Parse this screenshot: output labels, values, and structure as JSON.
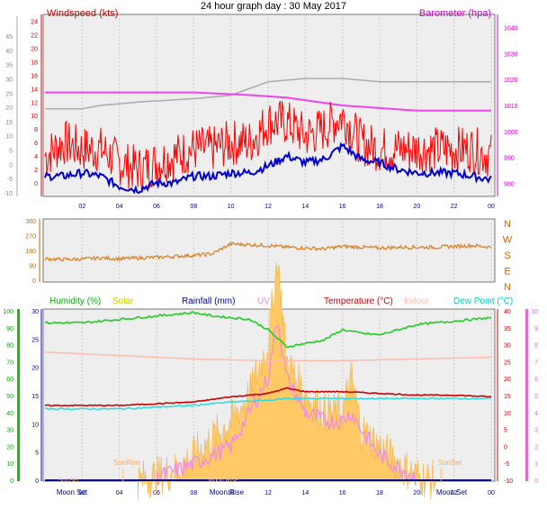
{
  "chart_data": [
    {
      "type": "line",
      "title": "24 hour graph day : 30 May 2017",
      "ylabel": "Windspeed (kts)",
      "y2label": "Barometer (hpa)",
      "x": [
        "02",
        "04",
        "06",
        "08",
        "10",
        "12",
        "14",
        "16",
        "18",
        "20",
        "22",
        "00"
      ],
      "xlim": [
        0,
        24
      ],
      "ylim_left_outer": [
        -10,
        45
      ],
      "ylim_left_inner": [
        -2,
        25
      ],
      "ylim_right": [
        975,
        1045
      ],
      "left_outer_ticks": [
        "-10",
        "-5",
        "0",
        "5",
        "10",
        "15",
        "20",
        "25",
        "30",
        "35",
        "40",
        "45"
      ],
      "left_inner_ticks": [
        "0",
        "2",
        "4",
        "6",
        "8",
        "10",
        "12",
        "14",
        "16",
        "18",
        "20",
        "22",
        "24"
      ],
      "right_ticks": [
        "980",
        "990",
        "1000",
        "1010",
        "1020",
        "1030",
        "1040"
      ],
      "colors": {
        "gust": "#ff0000",
        "speed": "#0000cc",
        "barometer": "#ee44ee",
        "grey": "#aaaaaa",
        "ylabel": "#cc0000",
        "y2label": "#cc00cc"
      },
      "series": [
        {
          "name": "gust",
          "x": [
            0,
            1,
            2,
            3,
            4,
            5,
            6,
            7,
            8,
            9,
            10,
            11,
            12,
            13,
            14,
            15,
            16,
            17,
            18,
            19,
            20,
            21,
            22,
            23,
            24
          ],
          "values": [
            4,
            6,
            5,
            5,
            3,
            2,
            3,
            4,
            5,
            5,
            6,
            6,
            9,
            9,
            7,
            8,
            10,
            6,
            5,
            5,
            5,
            5,
            5,
            5,
            4
          ]
        },
        {
          "name": "speed",
          "x": [
            0,
            1,
            2,
            3,
            4,
            5,
            6,
            7,
            8,
            9,
            10,
            11,
            12,
            13,
            14,
            15,
            16,
            17,
            18,
            19,
            20,
            21,
            22,
            23,
            24
          ],
          "values": [
            1,
            1,
            1.5,
            1,
            -0.5,
            -1,
            0,
            0,
            1,
            1,
            1.5,
            1.5,
            2.5,
            4,
            3,
            3.5,
            5.5,
            3.5,
            3,
            2,
            1.5,
            1.5,
            1.5,
            1,
            0.5
          ]
        },
        {
          "name": "barometer",
          "x": [
            0,
            4,
            8,
            11,
            13,
            14,
            15,
            16,
            18,
            20,
            22,
            24
          ],
          "values": [
            1015,
            1015,
            1015,
            1014,
            1013,
            1012,
            1011,
            1010,
            1009,
            1008,
            1008,
            1008
          ]
        },
        {
          "name": "grey",
          "x": [
            0,
            2,
            3,
            5,
            8,
            10,
            11,
            12,
            14,
            16,
            18,
            20,
            24
          ],
          "values": [
            11,
            11,
            11.5,
            12,
            12.5,
            13,
            14,
            15,
            15.5,
            15.5,
            15,
            15,
            15
          ]
        }
      ]
    },
    {
      "type": "line",
      "y_ticks": [
        "360",
        "270",
        "180",
        "90",
        "0"
      ],
      "compass": [
        "N",
        "W",
        "S",
        "E",
        "N"
      ],
      "ylim": [
        0,
        360
      ],
      "color": "#d97d1f",
      "series": [
        {
          "name": "wind direction",
          "x": [
            0,
            1,
            2,
            3,
            4,
            5,
            6,
            7,
            8,
            9,
            10,
            11,
            12,
            13,
            14,
            15,
            16,
            17,
            18,
            19,
            20,
            21,
            22,
            23,
            24
          ],
          "values": [
            130,
            125,
            128,
            135,
            130,
            135,
            138,
            145,
            150,
            160,
            220,
            215,
            210,
            200,
            195,
            190,
            205,
            200,
            195,
            200,
            200,
            200,
            205,
            210,
            200
          ]
        }
      ]
    },
    {
      "type": "line",
      "legend": [
        {
          "label": "Humidity  (%)",
          "color": "#00aa00"
        },
        {
          "label": "Solar",
          "color": "#cccc00"
        },
        {
          "label": "Rainfall (mm)",
          "color": "#000099"
        },
        {
          "label": "UV",
          "color": "#ee88ee"
        },
        {
          "label": "Temperature (°C)",
          "color": "#cc0000"
        },
        {
          "label": "Indoor",
          "color": "#ffbbaa"
        },
        {
          "label": "Dew Point (°C)",
          "color": "#00cccc"
        }
      ],
      "x_ticks": [
        "02",
        "04",
        "06",
        "08",
        "10",
        "12",
        "14",
        "16",
        "18",
        "20",
        "22",
        "00"
      ],
      "axis_humidity": [
        "0",
        "10",
        "20",
        "30",
        "40",
        "50",
        "60",
        "70",
        "80",
        "90",
        "100"
      ],
      "axis_rain": [
        "0",
        "5",
        "10",
        "15",
        "20",
        "25",
        "30"
      ],
      "axis_temp": [
        "-10",
        "-5",
        "0",
        "5",
        "10",
        "15",
        "20",
        "25",
        "30",
        "35",
        "40"
      ],
      "axis_uv": [
        "0",
        "1",
        "2",
        "3",
        "4",
        "5",
        "6",
        "7",
        "8",
        "9",
        "10"
      ],
      "annotations": [
        "Moon Set",
        "Moon Set",
        "SunRise",
        "Moon Rise",
        "Moon Rise",
        "SunSet",
        "SunSet"
      ],
      "temperature": {
        "x": [
          0,
          2,
          4,
          6,
          8,
          10,
          11,
          12,
          13,
          14,
          16,
          18,
          20,
          22,
          24
        ],
        "values": [
          12,
          12,
          12,
          12.5,
          13,
          14.5,
          15,
          15.5,
          17,
          16,
          16,
          15.5,
          15,
          15,
          14.5
        ]
      },
      "dewpoint": {
        "x": [
          0,
          2,
          4,
          6,
          8,
          10,
          12,
          13,
          14,
          16,
          18,
          20,
          22,
          24
        ],
        "values": [
          11,
          11,
          11,
          11.5,
          12,
          13,
          13.5,
          14,
          14,
          14,
          14,
          14,
          14,
          14
        ]
      },
      "humidity": {
        "x": [
          0,
          2,
          4,
          6,
          8,
          9,
          10,
          11,
          12,
          13,
          14,
          15,
          16,
          17,
          18,
          19,
          20,
          22,
          24
        ],
        "values": [
          92,
          92,
          94,
          96,
          98,
          96,
          95,
          94,
          88,
          78,
          80,
          82,
          88,
          86,
          85,
          88,
          91,
          93,
          95
        ]
      },
      "indoor": {
        "x": [
          0,
          4,
          8,
          12,
          16,
          20,
          24
        ],
        "values": [
          75,
          73,
          71,
          70,
          70,
          71,
          72
        ]
      },
      "solar": {
        "x": [
          5,
          6,
          7,
          8,
          9,
          10,
          11,
          12,
          12.5,
          13,
          14,
          15,
          16,
          16.5,
          17,
          18,
          19,
          20,
          21
        ],
        "values": [
          0,
          0.3,
          0.6,
          1.5,
          2.5,
          3.5,
          5,
          8,
          13,
          7,
          5,
          4,
          4,
          6,
          3,
          2,
          1,
          0.3,
          0
        ]
      },
      "uv": {
        "x": [
          6,
          8,
          10,
          11,
          12,
          12.5,
          13,
          14,
          15,
          16,
          16.5,
          17,
          18,
          19,
          20
        ],
        "values": [
          0.2,
          1,
          2,
          4,
          6,
          9.5,
          6,
          4,
          3.5,
          3.5,
          4,
          3,
          1.5,
          0.8,
          0.2
        ]
      }
    }
  ]
}
